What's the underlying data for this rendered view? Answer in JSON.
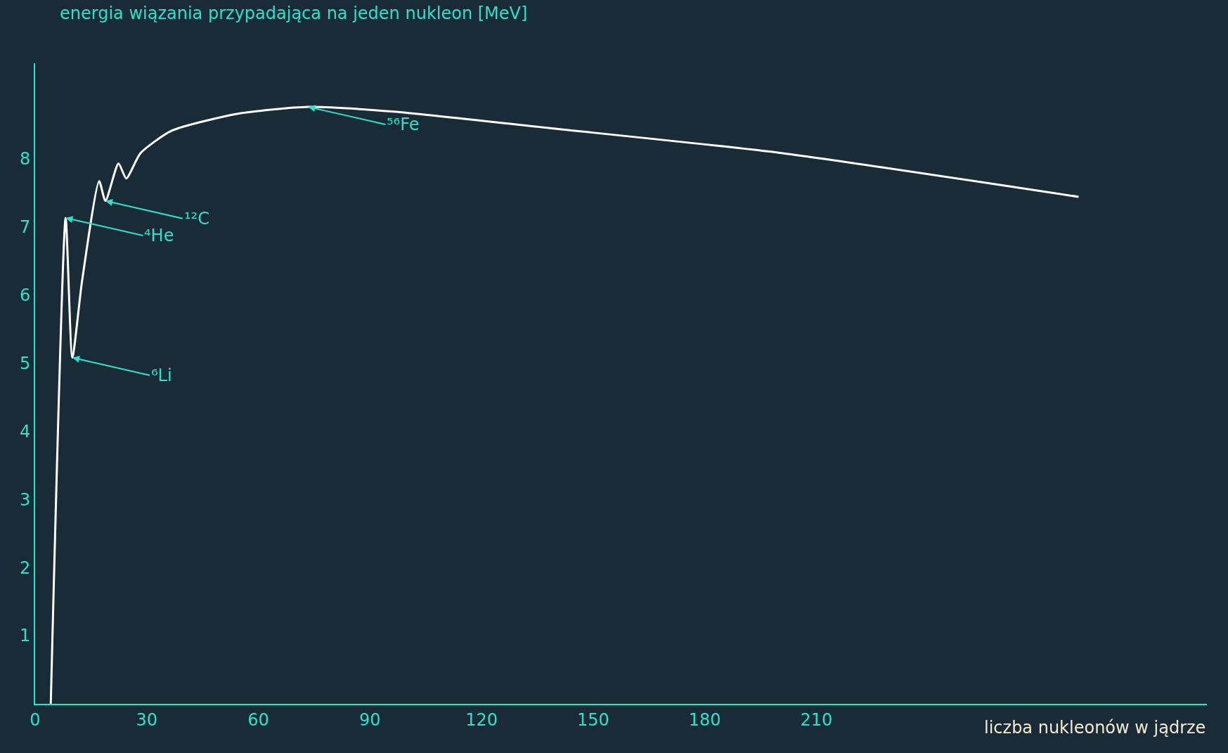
{
  "chart_data": {
    "type": "line",
    "xlabel": "liczba nukleonów w jądrze",
    "ylabel": "energia wiązania przypadająca na jeden nukleon [MeV]",
    "x": [
      4.2,
      8.2,
      10,
      12.6,
      17.2,
      18.9,
      22.4,
      24.5,
      28.3,
      36.7,
      54.5,
      73.4,
      96.4,
      138,
      201,
      280.5
    ],
    "series": [
      {
        "color": "#ffffff",
        "values": [
          0,
          7.13,
          5.08,
          6.2,
          7.67,
          7.38,
          7.93,
          7.71,
          8.08,
          8.41,
          8.66,
          8.76,
          8.69,
          8.45,
          8.08,
          7.44
        ]
      }
    ],
    "xlim": [
      0,
      315
    ],
    "ylim": [
      0,
      9.4
    ],
    "xticks": [
      0,
      30,
      60,
      90,
      120,
      150,
      180,
      210
    ],
    "yticks": [
      1,
      2,
      3,
      4,
      5,
      6,
      7,
      8
    ],
    "marker": "none",
    "line_style": "solid",
    "annotations": [
      {
        "text": "⁵⁶Fe",
        "x": 73.4,
        "y": 8.76
      },
      {
        "text": "¹²C",
        "x": 18.9,
        "y": 7.38
      },
      {
        "text": "⁴He",
        "x": 8.2,
        "y": 7.13
      },
      {
        "text": "⁶Li",
        "x": 10,
        "y": 5.08
      }
    ]
  }
}
